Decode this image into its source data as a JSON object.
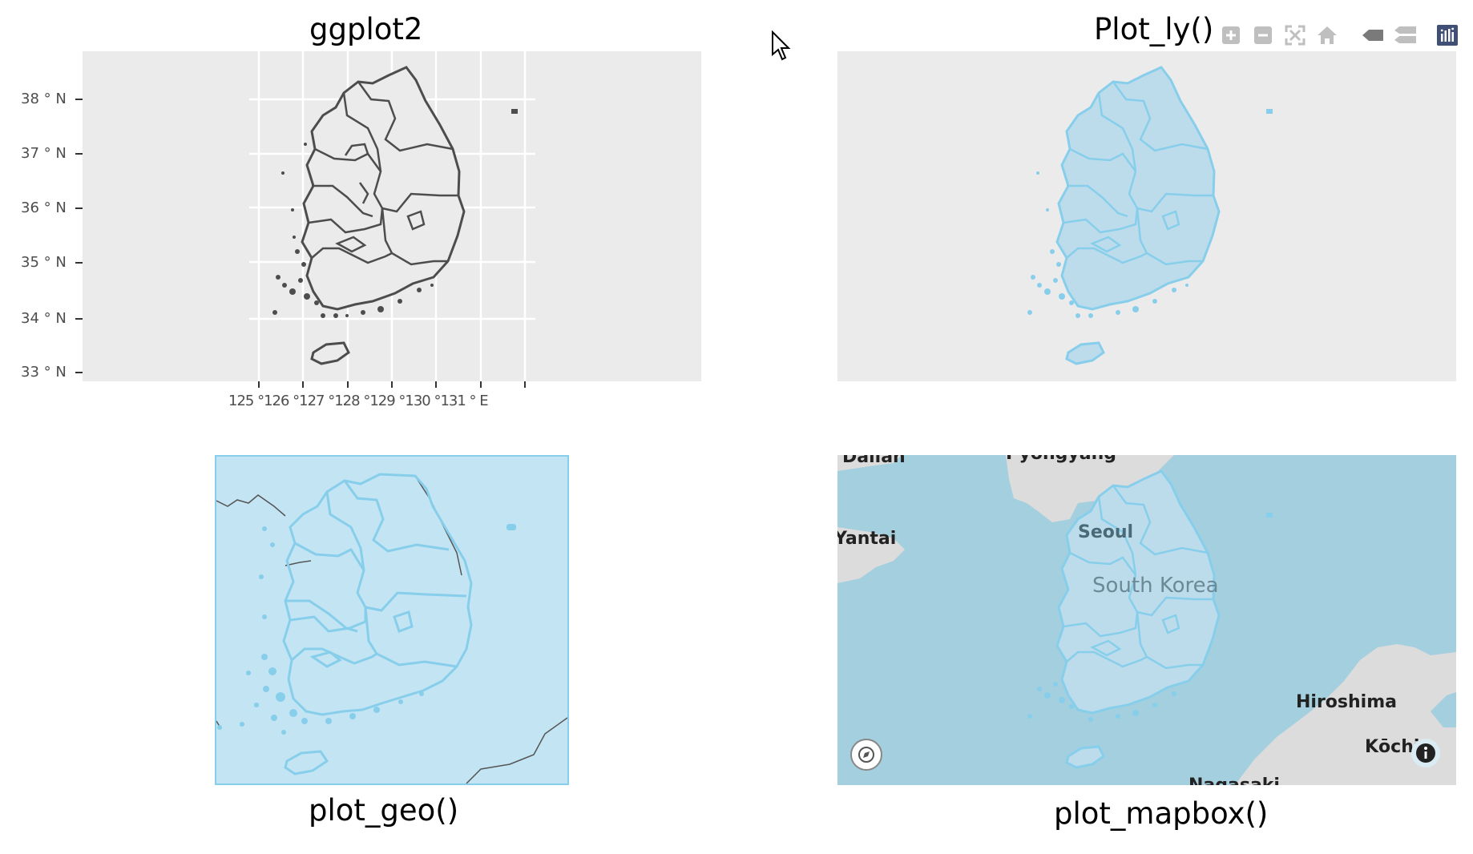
{
  "captions": {
    "ggplot2": "ggplot2",
    "plotly": "Plot_ly()",
    "plot_geo": "plot_geo()",
    "plot_mapbox": "plot_mapbox()"
  },
  "ggplot_panel": {
    "y_ticks": [
      "38 ° N",
      "37 ° N",
      "36 ° N",
      "35 ° N",
      "34 ° N",
      "33 ° N"
    ],
    "x_ticks_text": "125 °126 °127 °128 °129 °130 °131 ° E",
    "outline_color": "#4d4d4d",
    "fill_color": "#ebebeb",
    "panel_bg": "#ebebeb"
  },
  "plotly_panel": {
    "toolbar_icons": [
      "zoom-in-icon",
      "zoom-out-icon",
      "autoscale-icon",
      "reset-home-icon",
      "hover-closest-icon",
      "hover-compare-icon",
      "plotly-logo-icon"
    ],
    "fill_color": "#bcdcec",
    "line_color": "#87ceeb",
    "panel_bg": "#ebebeb"
  },
  "geo_panel": {
    "ocean_color": "#c3e4f3",
    "line_color": "#87ceeb"
  },
  "mapbox_panel": {
    "labels": {
      "dalian": "Dalian",
      "pyongyang": "Pyongyang",
      "yantai": "Yantai",
      "seoul": "Seoul",
      "south_korea": "South Korea",
      "hiroshima": "Hiroshima",
      "kochi": "Kōchi",
      "nagasaki": "Nagasaki"
    },
    "sea_color": "#a3cfdf",
    "land_color": "#dcdcdc"
  }
}
